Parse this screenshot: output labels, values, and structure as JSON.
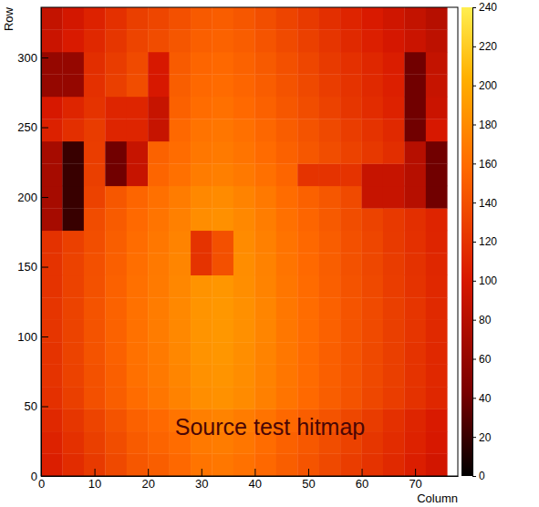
{
  "chart_data": {
    "type": "heatmap",
    "annotation": "Source test hitmap",
    "x_label": "Column",
    "y_label": "Row",
    "xlim": [
      0,
      78
    ],
    "ylim": [
      0,
      336
    ],
    "xticks": [
      0,
      10,
      20,
      30,
      40,
      50,
      60,
      70
    ],
    "yticks": [
      0,
      50,
      100,
      150,
      200,
      250,
      300
    ],
    "x_bins": [
      0,
      4,
      8,
      12,
      16,
      20,
      24,
      28,
      32,
      36,
      40,
      44,
      48,
      52,
      56,
      60,
      64,
      68,
      72,
      76
    ],
    "y_bins": [
      0,
      16,
      32,
      48,
      64,
      80,
      96,
      112,
      128,
      144,
      160,
      176,
      192,
      208,
      224,
      240,
      256,
      272,
      288,
      304,
      320,
      336
    ],
    "zlim": [
      0,
      240
    ],
    "zticks": [
      0,
      20,
      40,
      60,
      80,
      100,
      120,
      140,
      160,
      180,
      200,
      220,
      240
    ],
    "z": [
      [
        105,
        115,
        125,
        135,
        145,
        150,
        157,
        165,
        167,
        163,
        157,
        150,
        143,
        135,
        127,
        120,
        113,
        105,
        97
      ],
      [
        108,
        118,
        128,
        138,
        148,
        154,
        160,
        168,
        170,
        166,
        160,
        152,
        146,
        138,
        130,
        122,
        115,
        108,
        100
      ],
      [
        112,
        122,
        132,
        142,
        152,
        158,
        165,
        172,
        175,
        170,
        164,
        157,
        150,
        142,
        134,
        126,
        118,
        110,
        102
      ],
      [
        118,
        128,
        140,
        150,
        160,
        166,
        174,
        182,
        184,
        180,
        173,
        165,
        158,
        150,
        142,
        134,
        127,
        119,
        111
      ],
      [
        120,
        130,
        141,
        151,
        162,
        168,
        176,
        184,
        186,
        181,
        174,
        166,
        159,
        151,
        143,
        135,
        128,
        120,
        112
      ],
      [
        120,
        131,
        142,
        152,
        163,
        169,
        177,
        185,
        187,
        182,
        175,
        167,
        159,
        151,
        143,
        135,
        128,
        120,
        112
      ],
      [
        121,
        131,
        142,
        153,
        163,
        170,
        178,
        186,
        188,
        183,
        176,
        167,
        160,
        152,
        143,
        136,
        128,
        121,
        113
      ],
      [
        121,
        131,
        142,
        153,
        163,
        170,
        178,
        186,
        188,
        183,
        176,
        167,
        160,
        152,
        143,
        136,
        128,
        121,
        113
      ],
      [
        120,
        130,
        141,
        152,
        162,
        169,
        177,
        185,
        187,
        182,
        175,
        166,
        159,
        151,
        142,
        135,
        127,
        120,
        112
      ],
      [
        120,
        130,
        140,
        151,
        161,
        168,
        176,
        120,
        140,
        181,
        174,
        165,
        158,
        150,
        141,
        134,
        126,
        119,
        111
      ],
      [
        119,
        129,
        139,
        150,
        160,
        167,
        175,
        120,
        140,
        180,
        173,
        164,
        157,
        149,
        140,
        133,
        125,
        118,
        110
      ],
      [
        70,
        20,
        137,
        148,
        158,
        165,
        173,
        181,
        183,
        178,
        171,
        162,
        155,
        147,
        138,
        131,
        124,
        117,
        109
      ],
      [
        70,
        20,
        130,
        145,
        155,
        162,
        170,
        178,
        180,
        175,
        168,
        160,
        152,
        145,
        136,
        90,
        90,
        80,
        40
      ],
      [
        70,
        20,
        128,
        40,
        90,
        155,
        162,
        170,
        172,
        168,
        162,
        155,
        120,
        120,
        120,
        90,
        90,
        80,
        40
      ],
      [
        70,
        20,
        127,
        40,
        90,
        153,
        160,
        167,
        169,
        165,
        159,
        152,
        145,
        138,
        130,
        123,
        116,
        80,
        40
      ],
      [
        107,
        117,
        126,
        110,
        110,
        90,
        157,
        164,
        166,
        162,
        156,
        149,
        142,
        135,
        127,
        120,
        113,
        40,
        100
      ],
      [
        100,
        110,
        120,
        110,
        110,
        90,
        152,
        160,
        162,
        158,
        152,
        145,
        138,
        130,
        122,
        115,
        108,
        40,
        92
      ],
      [
        60,
        60,
        118,
        128,
        138,
        100,
        150,
        157,
        159,
        155,
        149,
        142,
        135,
        127,
        120,
        113,
        106,
        40,
        90
      ],
      [
        60,
        60,
        116,
        126,
        136,
        100,
        148,
        155,
        157,
        153,
        147,
        140,
        133,
        125,
        118,
        111,
        104,
        40,
        88
      ],
      [
        92,
        102,
        112,
        122,
        132,
        137,
        144,
        151,
        153,
        149,
        143,
        136,
        129,
        121,
        113,
        106,
        99,
        92,
        84
      ],
      [
        88,
        98,
        108,
        118,
        128,
        133,
        140,
        147,
        149,
        145,
        139,
        132,
        125,
        117,
        109,
        102,
        95,
        88,
        80
      ]
    ]
  }
}
